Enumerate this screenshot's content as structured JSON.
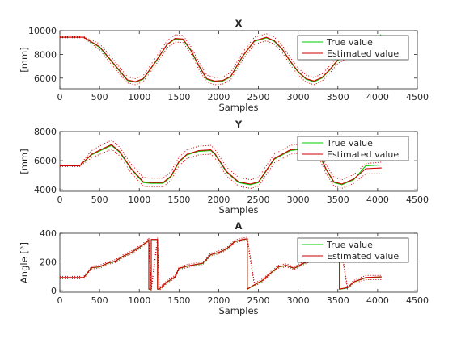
{
  "chart_data": [
    {
      "type": "line",
      "title": "X",
      "xlabel": "Samples",
      "ylabel": "[mm]",
      "xlim": [
        0,
        4500
      ],
      "ylim": [
        5100,
        10000
      ],
      "xticks": [
        0,
        500,
        1000,
        1500,
        2000,
        2500,
        3000,
        3500,
        4000,
        4500
      ],
      "yticks": [
        6000,
        8000,
        10000
      ],
      "grid": false,
      "legend_position": "top-right",
      "series": [
        {
          "name": "True value",
          "color": "#00cc00",
          "style": "solid",
          "x": [
            0,
            300,
            500,
            700,
            850,
            950,
            1050,
            1200,
            1350,
            1450,
            1550,
            1650,
            1750,
            1850,
            1950,
            2050,
            2150,
            2300,
            2450,
            2600,
            2700,
            2800,
            2900,
            3000,
            3100,
            3200,
            3300,
            3400,
            3500,
            3700
          ],
          "y": [
            9450,
            9450,
            8600,
            7000,
            5800,
            5650,
            5900,
            7300,
            8800,
            9300,
            9250,
            8300,
            7000,
            5900,
            5700,
            5750,
            6100,
            7800,
            9100,
            9400,
            9100,
            8400,
            7400,
            6500,
            5900,
            5700,
            6000,
            6700,
            7500,
            8200
          ]
        },
        {
          "name": "Estimated value",
          "color": "#cc0000",
          "style": "solid",
          "x": [
            0,
            300,
            500,
            700,
            850,
            950,
            1050,
            1200,
            1350,
            1450,
            1550,
            1650,
            1750,
            1850,
            1950,
            2050,
            2150,
            2300,
            2450,
            2600,
            2700,
            2800,
            2900,
            3000,
            3100,
            3200,
            3300,
            3400,
            3500,
            3700
          ],
          "y": [
            9450,
            9450,
            8650,
            7050,
            5850,
            5700,
            5950,
            7350,
            8850,
            9350,
            9300,
            8350,
            7050,
            5950,
            5750,
            5800,
            6150,
            7850,
            9150,
            9450,
            9150,
            8450,
            7450,
            6550,
            5950,
            5750,
            6050,
            6750,
            7550,
            8250
          ]
        },
        {
          "name": "",
          "color": "#cc0000",
          "style": "dotted",
          "x": [
            0,
            300,
            500,
            700,
            850,
            950,
            1050,
            1200,
            1350,
            1450,
            1550,
            1650,
            1750,
            1850,
            1950,
            2050,
            2150,
            2300,
            2450,
            2600,
            2700,
            2800,
            2900,
            3000,
            3100,
            3200,
            3300,
            3400,
            3500,
            3700
          ],
          "y": [
            9500,
            9500,
            8900,
            7350,
            6100,
            5950,
            6200,
            7650,
            9150,
            9650,
            9600,
            8650,
            7350,
            6250,
            6050,
            6100,
            6450,
            8150,
            9450,
            9750,
            9450,
            8750,
            7750,
            6850,
            6250,
            6050,
            6350,
            7050,
            7850,
            8550
          ]
        },
        {
          "name": "",
          "color": "#cc0000",
          "style": "dotted",
          "x": [
            0,
            300,
            500,
            700,
            850,
            950,
            1050,
            1200,
            1350,
            1450,
            1550,
            1650,
            1750,
            1850,
            1950,
            2050,
            2150,
            2300,
            2450,
            2600,
            2700,
            2800,
            2900,
            3000,
            3100,
            3200,
            3300,
            3400,
            3500,
            3700
          ],
          "y": [
            9400,
            9400,
            8400,
            6750,
            5600,
            5450,
            5700,
            7050,
            8550,
            9050,
            9000,
            8050,
            6750,
            5650,
            5450,
            5500,
            5850,
            7550,
            8850,
            9150,
            8850,
            8150,
            7150,
            6250,
            5650,
            5450,
            5750,
            6450,
            7250,
            7950
          ]
        },
        {
          "name": "",
          "color": "#00cc00",
          "style": "dotted",
          "x": [
            3700,
            3850,
            4000,
            4050
          ],
          "y": [
            8200,
            8900,
            9500,
            9700
          ]
        }
      ]
    },
    {
      "type": "line",
      "title": "Y",
      "xlabel": "Samples",
      "ylabel": "[mm]",
      "xlim": [
        0,
        4500
      ],
      "ylim": [
        3900,
        8000
      ],
      "xticks": [
        0,
        500,
        1000,
        1500,
        2000,
        2500,
        3000,
        3500,
        4000,
        4500
      ],
      "yticks": [
        4000,
        6000,
        8000
      ],
      "grid": false,
      "legend_position": "top-right",
      "series": [
        {
          "name": "True value",
          "color": "#00cc00",
          "style": "solid",
          "x": [
            0,
            250,
            400,
            550,
            650,
            750,
            900,
            1050,
            1150,
            1300,
            1400,
            1500,
            1600,
            1750,
            1900,
            1950,
            2100,
            2250,
            2400,
            2500,
            2600,
            2700,
            2900,
            3050,
            3150,
            3250,
            3350,
            3450,
            3550,
            3700,
            3850,
            4050
          ],
          "y": [
            5650,
            5650,
            6400,
            6800,
            7050,
            6600,
            5400,
            4500,
            4450,
            4450,
            4900,
            5900,
            6400,
            6650,
            6700,
            6450,
            5200,
            4500,
            4350,
            4500,
            5300,
            6100,
            6700,
            6800,
            7050,
            6600,
            5400,
            4500,
            4350,
            4700,
            5650,
            5700
          ]
        },
        {
          "name": "Estimated value",
          "color": "#cc0000",
          "style": "solid",
          "x": [
            0,
            250,
            400,
            550,
            650,
            750,
            900,
            1050,
            1150,
            1300,
            1400,
            1500,
            1600,
            1750,
            1900,
            1950,
            2100,
            2250,
            2400,
            2500,
            2600,
            2700,
            2900,
            3050,
            3150,
            3250,
            3350,
            3450,
            3550,
            3700,
            3850,
            4050
          ],
          "y": [
            5650,
            5650,
            6450,
            6850,
            7100,
            6650,
            5450,
            4550,
            4500,
            4500,
            4950,
            5950,
            6450,
            6700,
            6750,
            6500,
            5250,
            4550,
            4400,
            4550,
            5350,
            6150,
            6750,
            6850,
            7100,
            6650,
            5450,
            4550,
            4400,
            4750,
            5450,
            5500
          ]
        },
        {
          "name": "",
          "color": "#cc0000",
          "style": "dotted",
          "x": [
            0,
            250,
            400,
            550,
            650,
            750,
            900,
            1050,
            1150,
            1300,
            1400,
            1500,
            1600,
            1750,
            1900,
            1950,
            2100,
            2250,
            2400,
            2500,
            2600,
            2700,
            2900,
            3050,
            3150,
            3250,
            3350,
            3450,
            3550,
            3700,
            3850,
            4050
          ],
          "y": [
            5700,
            5700,
            6700,
            7150,
            7400,
            6950,
            5750,
            4850,
            4800,
            4800,
            5250,
            6250,
            6750,
            7000,
            7050,
            6800,
            5550,
            4850,
            4700,
            4850,
            5650,
            6450,
            7050,
            7150,
            7400,
            6950,
            5750,
            4850,
            4700,
            5050,
            5800,
            5900
          ]
        },
        {
          "name": "",
          "color": "#cc0000",
          "style": "dotted",
          "x": [
            0,
            250,
            400,
            550,
            650,
            750,
            900,
            1050,
            1150,
            1300,
            1400,
            1500,
            1600,
            1750,
            1900,
            1950,
            2100,
            2250,
            2400,
            2500,
            2600,
            2700,
            2900,
            3050,
            3150,
            3250,
            3350,
            3450,
            3550,
            3700,
            3850,
            4050
          ],
          "y": [
            5600,
            5600,
            6200,
            6550,
            6800,
            6350,
            5150,
            4250,
            4200,
            4200,
            4650,
            5650,
            6150,
            6400,
            6450,
            6200,
            4950,
            4250,
            4100,
            4250,
            5050,
            5850,
            6450,
            6550,
            6800,
            6350,
            5150,
            4250,
            4100,
            4450,
            5100,
            5100
          ]
        },
        {
          "name": "",
          "color": "#00cc00",
          "style": "dotted",
          "x": [
            3850,
            4050
          ],
          "y": [
            6000,
            6000
          ]
        }
      ]
    },
    {
      "type": "line",
      "title": "A",
      "xlabel": "Samples",
      "ylabel": "Angle [°]",
      "xlim": [
        0,
        4500
      ],
      "ylim": [
        -10,
        400
      ],
      "xticks": [
        0,
        500,
        1000,
        1500,
        2000,
        2500,
        3000,
        3500,
        4000,
        4500
      ],
      "yticks": [
        0,
        200,
        400
      ],
      "grid": false,
      "legend_position": "top-right",
      "series": [
        {
          "name": "True value",
          "color": "#00cc00",
          "style": "solid",
          "x": [
            0,
            300,
            400,
            500,
            600,
            700,
            800,
            900,
            1000,
            1100,
            1120,
            1120,
            1150,
            1150,
            1230,
            1230,
            1250,
            1350,
            1450,
            1500,
            1600,
            1700,
            1800,
            1900,
            2000,
            2100,
            2200,
            2300,
            2360,
            2360,
            2450,
            2550,
            2650,
            2750,
            2850,
            2950,
            3050,
            3150,
            3250,
            3350,
            3450,
            3520,
            3520,
            3620,
            3700,
            3850,
            4050
          ],
          "y": [
            90,
            90,
            160,
            165,
            190,
            205,
            240,
            265,
            300,
            340,
            355,
            10,
            10,
            355,
            355,
            10,
            10,
            60,
            95,
            155,
            170,
            180,
            190,
            250,
            265,
            290,
            340,
            355,
            360,
            10,
            40,
            70,
            120,
            165,
            175,
            155,
            185,
            210,
            235,
            270,
            320,
            355,
            10,
            20,
            60,
            90,
            95
          ]
        },
        {
          "name": "Estimated value",
          "color": "#cc0000",
          "style": "solid",
          "x": [
            0,
            300,
            400,
            500,
            600,
            700,
            800,
            900,
            1000,
            1100,
            1120,
            1120,
            1150,
            1150,
            1230,
            1230,
            1250,
            1350,
            1450,
            1500,
            1600,
            1700,
            1800,
            1900,
            2000,
            2100,
            2200,
            2300,
            2360,
            2360,
            2450,
            2550,
            2650,
            2750,
            2850,
            2950,
            3050,
            3150,
            3250,
            3350,
            3450,
            3520,
            3520,
            3620,
            3700,
            3850,
            4050
          ],
          "y": [
            92,
            92,
            162,
            167,
            192,
            207,
            242,
            267,
            302,
            342,
            357,
            12,
            12,
            357,
            357,
            12,
            12,
            62,
            97,
            157,
            172,
            182,
            192,
            252,
            267,
            292,
            342,
            357,
            362,
            12,
            42,
            72,
            122,
            167,
            177,
            157,
            187,
            212,
            237,
            272,
            322,
            357,
            12,
            22,
            62,
            92,
            97
          ]
        },
        {
          "name": "",
          "color": "#cc0000",
          "style": "dotted",
          "x": [
            0,
            300,
            400,
            500,
            600,
            700,
            800,
            900,
            1000,
            1100,
            1120,
            1150,
            1230,
            1250,
            1350,
            1450,
            1500,
            1600,
            1700,
            1800,
            1900,
            2000,
            2100,
            2200,
            2300,
            2360,
            2450,
            2550,
            2650,
            2750,
            2850,
            2950,
            3050,
            3150,
            3250,
            3350,
            3450,
            3520,
            3620,
            3700,
            3850,
            4050
          ],
          "y": [
            100,
            100,
            172,
            177,
            202,
            217,
            252,
            277,
            312,
            352,
            367,
            22,
            367,
            22,
            72,
            107,
            167,
            182,
            192,
            202,
            262,
            277,
            302,
            352,
            367,
            372,
            52,
            82,
            132,
            177,
            187,
            167,
            197,
            222,
            247,
            282,
            332,
            367,
            32,
            72,
            107,
            107
          ]
        },
        {
          "name": "",
          "color": "#cc0000",
          "style": "dotted",
          "x": [
            0,
            300,
            400,
            500,
            600,
            700,
            800,
            900,
            1000,
            1100,
            1120,
            1150,
            1230,
            1250,
            1350,
            1450,
            1500,
            1600,
            1700,
            1800,
            1900,
            2000,
            2100,
            2200,
            2300,
            2360,
            2450,
            2550,
            2650,
            2750,
            2850,
            2950,
            3050,
            3150,
            3250,
            3350,
            3450,
            3520,
            3620,
            3700,
            3850,
            4050
          ],
          "y": [
            84,
            84,
            152,
            157,
            182,
            197,
            232,
            257,
            292,
            332,
            347,
            2,
            347,
            2,
            52,
            87,
            147,
            162,
            172,
            182,
            242,
            257,
            282,
            332,
            347,
            352,
            32,
            62,
            112,
            157,
            167,
            147,
            177,
            202,
            227,
            262,
            312,
            347,
            12,
            52,
            77,
            77
          ]
        }
      ]
    }
  ]
}
